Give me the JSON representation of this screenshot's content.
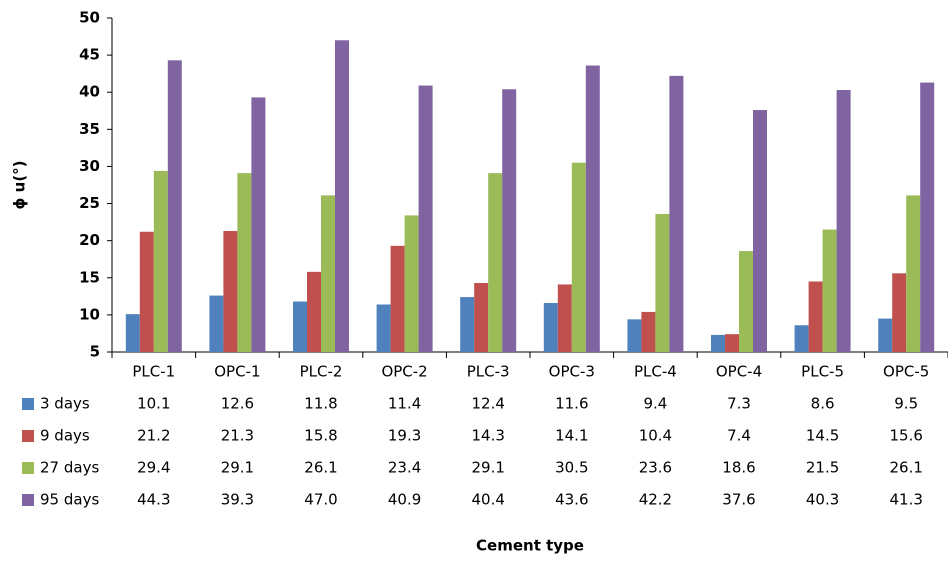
{
  "chart_data": {
    "type": "bar",
    "y_label": "ϕ u(°)",
    "x_label": "Cement type",
    "categories": [
      "PLC-1",
      "OPC-1",
      "PLC-2",
      "OPC-2",
      "PLC-3",
      "OPC-3",
      "PLC-4",
      "OPC-4",
      "PLC-5",
      "OPC-5"
    ],
    "series": [
      {
        "name": "3 days",
        "color": "#4f81bd",
        "values": [
          10.1,
          12.6,
          11.8,
          11.4,
          12.4,
          11.6,
          9.4,
          7.3,
          8.6,
          9.5
        ],
        "value_labels": [
          "10.1",
          "12.6",
          "11.8",
          "11.4",
          "12.4",
          "11.6",
          "9.4",
          "7.3",
          "8.6",
          "9.5"
        ]
      },
      {
        "name": "9 days",
        "color": "#c0504d",
        "values": [
          21.2,
          21.3,
          15.8,
          19.3,
          14.3,
          14.1,
          10.4,
          7.4,
          14.5,
          15.6
        ],
        "value_labels": [
          "21.2",
          "21.3",
          "15.8",
          "19.3",
          "14.3",
          "14.1",
          "10.4",
          "7.4",
          "14.5",
          "15.6"
        ]
      },
      {
        "name": "27 days",
        "color": "#9bbb59",
        "values": [
          29.4,
          29.1,
          26.1,
          23.4,
          29.1,
          30.5,
          23.6,
          18.6,
          21.5,
          26.1
        ],
        "value_labels": [
          "29.4",
          "29.1",
          "26.1",
          "23.4",
          "29.1",
          "30.5",
          "23.6",
          "18.6",
          "21.5",
          "26.1"
        ]
      },
      {
        "name": "95 days",
        "color": "#8064a2",
        "values": [
          44.3,
          39.3,
          47.0,
          40.9,
          40.4,
          43.6,
          42.2,
          37.6,
          40.3,
          41.3
        ],
        "value_labels": [
          "44.3",
          "39.3",
          "47.0",
          "40.9",
          "40.4",
          "43.6",
          "42.2",
          "37.6",
          "40.3",
          "41.3"
        ]
      }
    ],
    "ylim": [
      5,
      50
    ],
    "yticks": [
      5,
      10,
      15,
      20,
      25,
      30,
      35,
      40,
      45,
      50
    ]
  }
}
